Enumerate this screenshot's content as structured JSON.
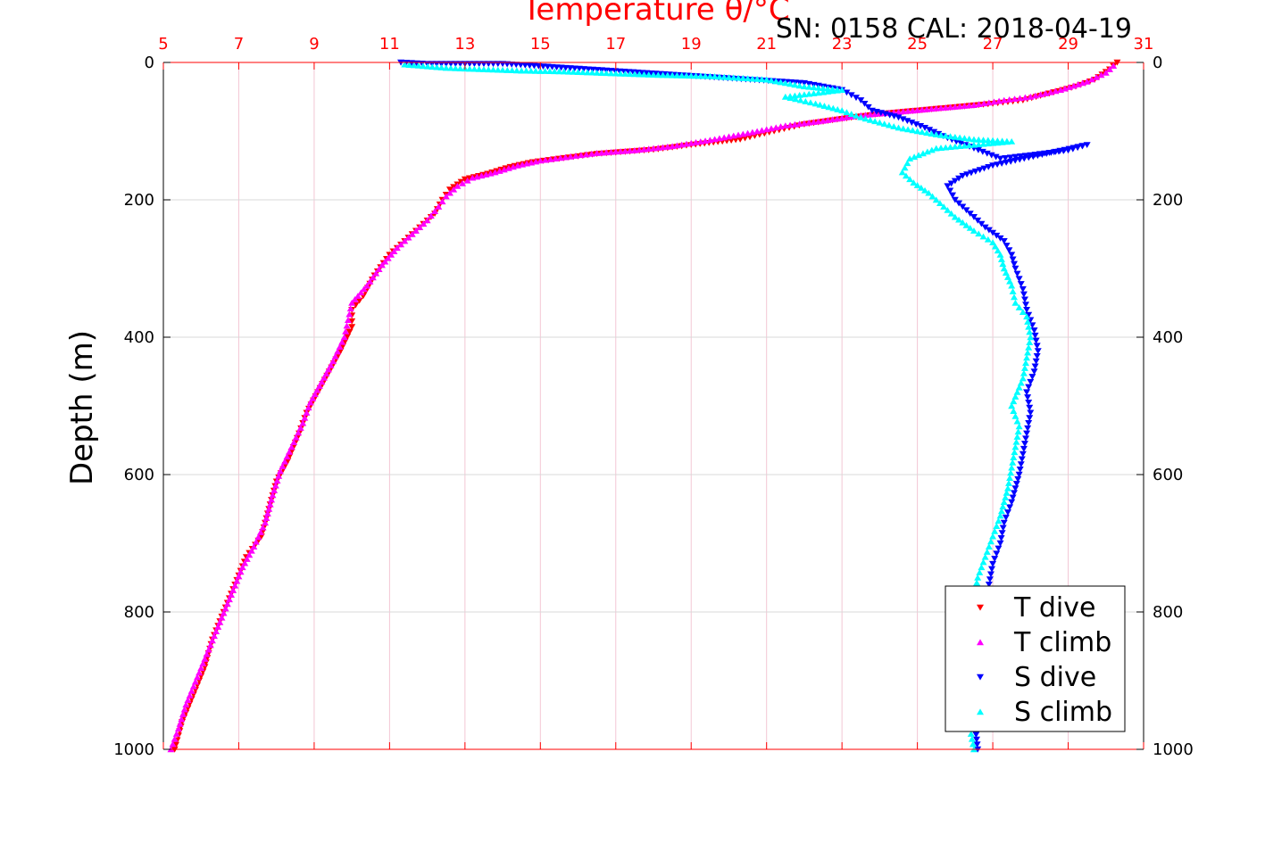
{
  "chart_data": {
    "type": "scatter",
    "title": "Temperature θ/°C",
    "info": "SN: 0158  CAL: 2018-04-19",
    "ylabel": "Depth (m)",
    "xlim": [
      5,
      31
    ],
    "ylim": [
      0,
      1000
    ],
    "y_reversed": true,
    "x_ticks": [
      5,
      7,
      9,
      11,
      13,
      15,
      17,
      19,
      21,
      23,
      25,
      27,
      29,
      31
    ],
    "y_ticks": [
      0,
      200,
      400,
      600,
      800,
      1000
    ],
    "grid": true,
    "legend_position": "bottom-right",
    "colors": {
      "axis_x": "#ff0000",
      "axis_y": "#000000",
      "grid": "#d9d9d9"
    },
    "series": [
      {
        "name": "T dive",
        "marker": "triangle-down",
        "color": "#ff0000",
        "points": [
          [
            30.3,
            0
          ],
          [
            30.1,
            10
          ],
          [
            29.7,
            25
          ],
          [
            29.2,
            35
          ],
          [
            28.5,
            45
          ],
          [
            27.8,
            55
          ],
          [
            27.0,
            60
          ],
          [
            26.0,
            65
          ],
          [
            25.0,
            70
          ],
          [
            24.0,
            75
          ],
          [
            23.0,
            82
          ],
          [
            22.0,
            90
          ],
          [
            21.2,
            100
          ],
          [
            20.3,
            112
          ],
          [
            19.0,
            120
          ],
          [
            18.0,
            127
          ],
          [
            16.5,
            133
          ],
          [
            15.5,
            140
          ],
          [
            14.8,
            145
          ],
          [
            14.2,
            152
          ],
          [
            13.6,
            162
          ],
          [
            13.0,
            170
          ],
          [
            12.6,
            185
          ],
          [
            12.4,
            200
          ],
          [
            12.2,
            220
          ],
          [
            11.8,
            240
          ],
          [
            11.4,
            260
          ],
          [
            11.0,
            280
          ],
          [
            10.6,
            310
          ],
          [
            10.3,
            340
          ],
          [
            10.0,
            360
          ],
          [
            10.0,
            385
          ],
          [
            9.7,
            420
          ],
          [
            9.4,
            450
          ],
          [
            9.1,
            480
          ],
          [
            8.8,
            510
          ],
          [
            8.6,
            540
          ],
          [
            8.3,
            580
          ],
          [
            8.0,
            610
          ],
          [
            7.8,
            650
          ],
          [
            7.6,
            690
          ],
          [
            7.2,
            720
          ],
          [
            6.9,
            760
          ],
          [
            6.6,
            800
          ],
          [
            6.3,
            840
          ],
          [
            6.1,
            880
          ],
          [
            5.8,
            920
          ],
          [
            5.5,
            960
          ],
          [
            5.3,
            1000
          ]
        ]
      },
      {
        "name": "T climb",
        "marker": "triangle-up",
        "color": "#ff00ff",
        "points": [
          [
            30.2,
            5
          ],
          [
            30.0,
            15
          ],
          [
            29.5,
            28
          ],
          [
            28.8,
            40
          ],
          [
            28.0,
            50
          ],
          [
            27.3,
            55
          ],
          [
            26.5,
            62
          ],
          [
            25.5,
            67
          ],
          [
            24.5,
            72
          ],
          [
            23.5,
            77
          ],
          [
            22.5,
            85
          ],
          [
            21.5,
            92
          ],
          [
            20.5,
            103
          ],
          [
            19.5,
            113
          ],
          [
            18.5,
            122
          ],
          [
            17.5,
            128
          ],
          [
            16.5,
            132
          ],
          [
            15.8,
            137
          ],
          [
            15.0,
            143
          ],
          [
            14.4,
            150
          ],
          [
            13.8,
            160
          ],
          [
            13.2,
            168
          ],
          [
            12.8,
            180
          ],
          [
            12.5,
            195
          ],
          [
            12.3,
            210
          ],
          [
            12.0,
            230
          ],
          [
            11.6,
            250
          ],
          [
            11.2,
            270
          ],
          [
            10.8,
            295
          ],
          [
            10.4,
            325
          ],
          [
            10.0,
            350
          ],
          [
            9.9,
            375
          ],
          [
            9.8,
            400
          ],
          [
            9.5,
            435
          ],
          [
            9.2,
            465
          ],
          [
            8.9,
            495
          ],
          [
            8.7,
            525
          ],
          [
            8.4,
            560
          ],
          [
            8.1,
            595
          ],
          [
            7.9,
            630
          ],
          [
            7.7,
            670
          ],
          [
            7.4,
            705
          ],
          [
            7.1,
            735
          ],
          [
            6.8,
            775
          ],
          [
            6.5,
            815
          ],
          [
            6.2,
            855
          ],
          [
            5.9,
            895
          ],
          [
            5.6,
            935
          ],
          [
            5.4,
            970
          ],
          [
            5.2,
            1000
          ]
        ]
      },
      {
        "name": "S dive",
        "marker": "triangle-down",
        "color": "#0000ff",
        "points": [
          [
            11.3,
            0
          ],
          [
            12.0,
            2
          ],
          [
            13.0,
            2
          ],
          [
            14.0,
            2
          ],
          [
            22.0,
            30
          ],
          [
            23.0,
            40
          ],
          [
            23.5,
            55
          ],
          [
            23.8,
            70
          ],
          [
            24.5,
            80
          ],
          [
            25.2,
            95
          ],
          [
            25.8,
            110
          ],
          [
            26.5,
            125
          ],
          [
            27.2,
            140
          ],
          [
            28.0,
            135
          ],
          [
            29.0,
            128
          ],
          [
            29.5,
            120
          ],
          [
            27.0,
            150
          ],
          [
            26.2,
            165
          ],
          [
            25.8,
            180
          ],
          [
            26.0,
            200
          ],
          [
            26.4,
            220
          ],
          [
            26.8,
            240
          ],
          [
            27.3,
            260
          ],
          [
            27.5,
            280
          ],
          [
            27.6,
            300
          ],
          [
            27.8,
            330
          ],
          [
            27.9,
            360
          ],
          [
            28.1,
            390
          ],
          [
            28.2,
            420
          ],
          [
            28.1,
            450
          ],
          [
            27.9,
            480
          ],
          [
            28.0,
            510
          ],
          [
            27.9,
            540
          ],
          [
            27.8,
            570
          ],
          [
            27.7,
            600
          ],
          [
            27.5,
            640
          ],
          [
            27.3,
            670
          ],
          [
            27.2,
            700
          ],
          [
            27.0,
            730
          ],
          [
            26.9,
            760
          ],
          [
            26.7,
            800
          ],
          [
            26.6,
            850
          ],
          [
            26.5,
            900
          ],
          [
            26.5,
            950
          ],
          [
            26.6,
            1000
          ]
        ]
      },
      {
        "name": "S climb",
        "marker": "triangle-up",
        "color": "#00ffff",
        "points": [
          [
            11.4,
            3
          ],
          [
            12.5,
            8
          ],
          [
            13.5,
            10
          ],
          [
            14.5,
            12
          ],
          [
            15.5,
            13
          ],
          [
            16.5,
            15
          ],
          [
            18.0,
            18
          ],
          [
            19.5,
            20
          ],
          [
            21.0,
            25
          ],
          [
            22.0,
            35
          ],
          [
            23.0,
            40
          ],
          [
            21.5,
            50
          ],
          [
            22.3,
            60
          ],
          [
            23.0,
            70
          ],
          [
            23.5,
            80
          ],
          [
            24.5,
            95
          ],
          [
            25.5,
            105
          ],
          [
            26.5,
            112
          ],
          [
            27.5,
            115
          ],
          [
            25.5,
            125
          ],
          [
            24.8,
            140
          ],
          [
            24.6,
            160
          ],
          [
            24.9,
            175
          ],
          [
            25.3,
            190
          ],
          [
            25.6,
            205
          ],
          [
            26.0,
            225
          ],
          [
            26.5,
            245
          ],
          [
            27.0,
            262
          ],
          [
            27.2,
            280
          ],
          [
            27.3,
            300
          ],
          [
            27.5,
            325
          ],
          [
            27.6,
            350
          ],
          [
            27.9,
            370
          ],
          [
            28.0,
            400
          ],
          [
            27.9,
            430
          ],
          [
            27.8,
            460
          ],
          [
            27.5,
            500
          ],
          [
            27.7,
            530
          ],
          [
            27.6,
            560
          ],
          [
            27.5,
            590
          ],
          [
            27.4,
            620
          ],
          [
            27.2,
            660
          ],
          [
            27.0,
            690
          ],
          [
            26.8,
            720
          ],
          [
            26.6,
            750
          ],
          [
            26.5,
            780
          ],
          [
            26.4,
            830
          ],
          [
            26.3,
            880
          ],
          [
            26.3,
            930
          ],
          [
            26.4,
            970
          ],
          [
            26.5,
            1000
          ]
        ]
      }
    ]
  }
}
